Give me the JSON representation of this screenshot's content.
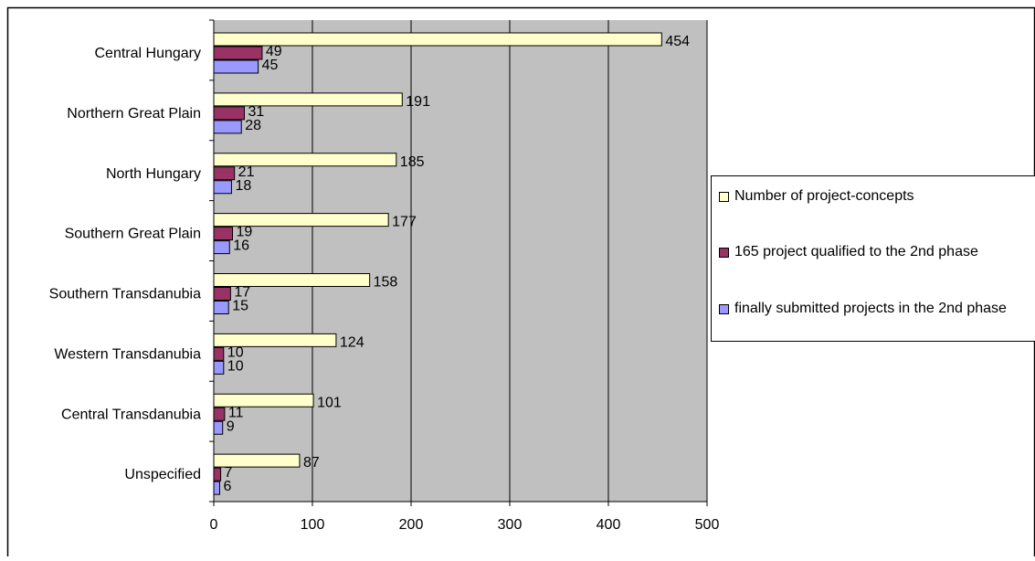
{
  "colors": {
    "plot_background": "#c0c0c0",
    "grid": "#000000"
  },
  "chart_data": {
    "type": "bar",
    "orientation": "horizontal",
    "categories": [
      "Central Hungary",
      "Northern Great Plain",
      "North Hungary ",
      "Southern Great Plain",
      "Southern Transdanubia",
      "Western Transdanubia ",
      "Central Transdanubia",
      "Unspecified"
    ],
    "series": [
      {
        "name": "Number of project-concepts",
        "color": "#ffffcc",
        "values": [
          454,
          191,
          185,
          177,
          158,
          124,
          101,
          87
        ]
      },
      {
        "name": "165 project qualified to the 2nd phase",
        "color": "#993366",
        "values": [
          49,
          31,
          21,
          19,
          17,
          10,
          11,
          7
        ]
      },
      {
        "name": "finally submitted projects in the 2nd phase",
        "color": "#9999ff",
        "values": [
          45,
          28,
          18,
          16,
          15,
          10,
          9,
          6
        ]
      }
    ],
    "xlim": [
      0,
      500
    ],
    "xticks": [
      "0",
      "100",
      "200",
      "300",
      "400",
      "500"
    ],
    "grid": "vertical",
    "legend_position": "right",
    "title": "",
    "xlabel": "",
    "ylabel": ""
  }
}
